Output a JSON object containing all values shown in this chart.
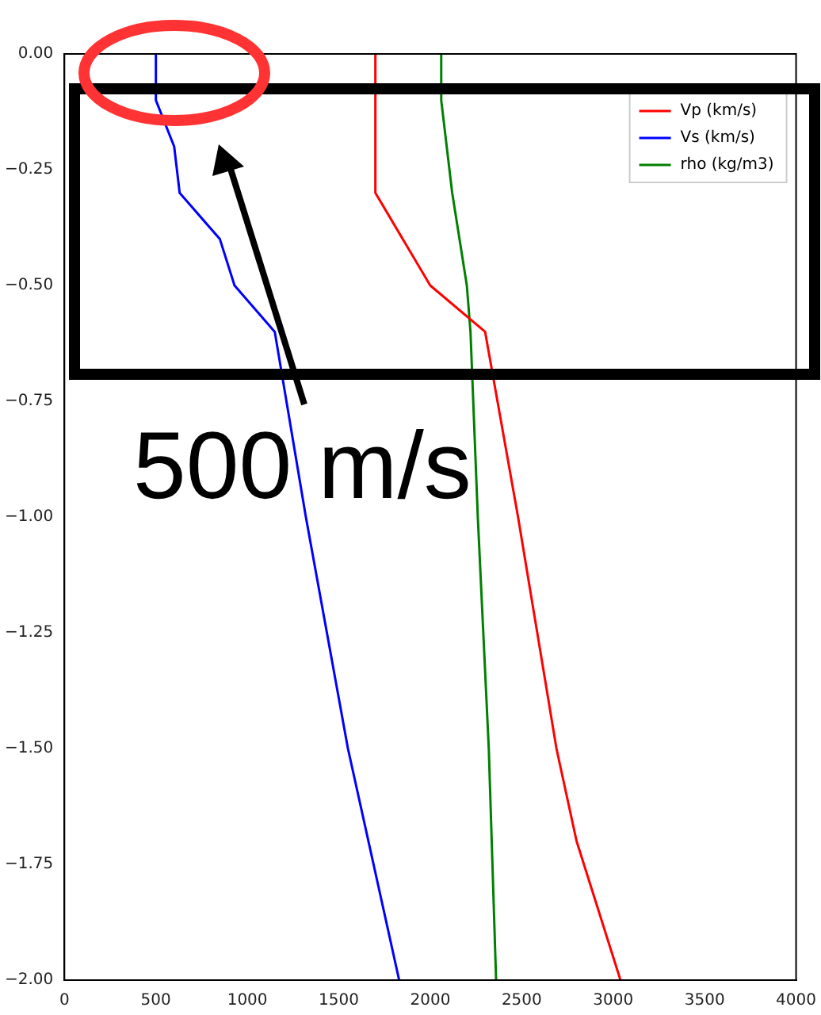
{
  "chart_data": {
    "type": "line",
    "xlim": [
      0,
      4000
    ],
    "xticks": [
      0,
      500,
      1000,
      1500,
      2000,
      2500,
      3000,
      3500,
      4000
    ],
    "ylim": [
      -2,
      0
    ],
    "yticks": [
      {
        "value": 0,
        "label": "0.00"
      },
      {
        "value": -0.25,
        "label": "−0.25"
      },
      {
        "value": -0.5,
        "label": "−0.50"
      },
      {
        "value": -0.75,
        "label": "−0.75"
      },
      {
        "value": -1,
        "label": "−1.00"
      },
      {
        "value": -1.25,
        "label": "−1.25"
      },
      {
        "value": -1.5,
        "label": "−1.50"
      },
      {
        "value": -1.75,
        "label": "−1.75"
      },
      {
        "value": -2,
        "label": "−2.00"
      }
    ],
    "series": [
      {
        "name": "Vp (km/s)",
        "color": "#ff0000",
        "x": [
          1700,
          1700,
          2000,
          2300,
          2480,
          2690,
          2800,
          3040
        ],
        "values": [
          0,
          -0.3,
          -0.5,
          -0.6,
          -1,
          -1.5,
          -1.7,
          -2
        ]
      },
      {
        "name": "Vs (km/s)",
        "color": "#0000ff",
        "x": [
          500,
          500,
          600,
          630,
          850,
          930,
          1150,
          1320,
          1550,
          1830
        ],
        "values": [
          0,
          -0.1,
          -0.2,
          -0.3,
          -0.4,
          -0.5,
          -0.6,
          -1,
          -1.5,
          -2
        ]
      },
      {
        "name": "rho (kg/m3)",
        "color": "#008000",
        "x": [
          2060,
          2060,
          2120,
          2200,
          2220,
          2260,
          2320,
          2360
        ],
        "values": [
          0,
          -0.1,
          -0.3,
          -0.5,
          -0.6,
          -1,
          -1.5,
          -2
        ]
      }
    ],
    "legend": "top right",
    "grid": false,
    "annotations": [
      "500 m/s"
    ]
  }
}
